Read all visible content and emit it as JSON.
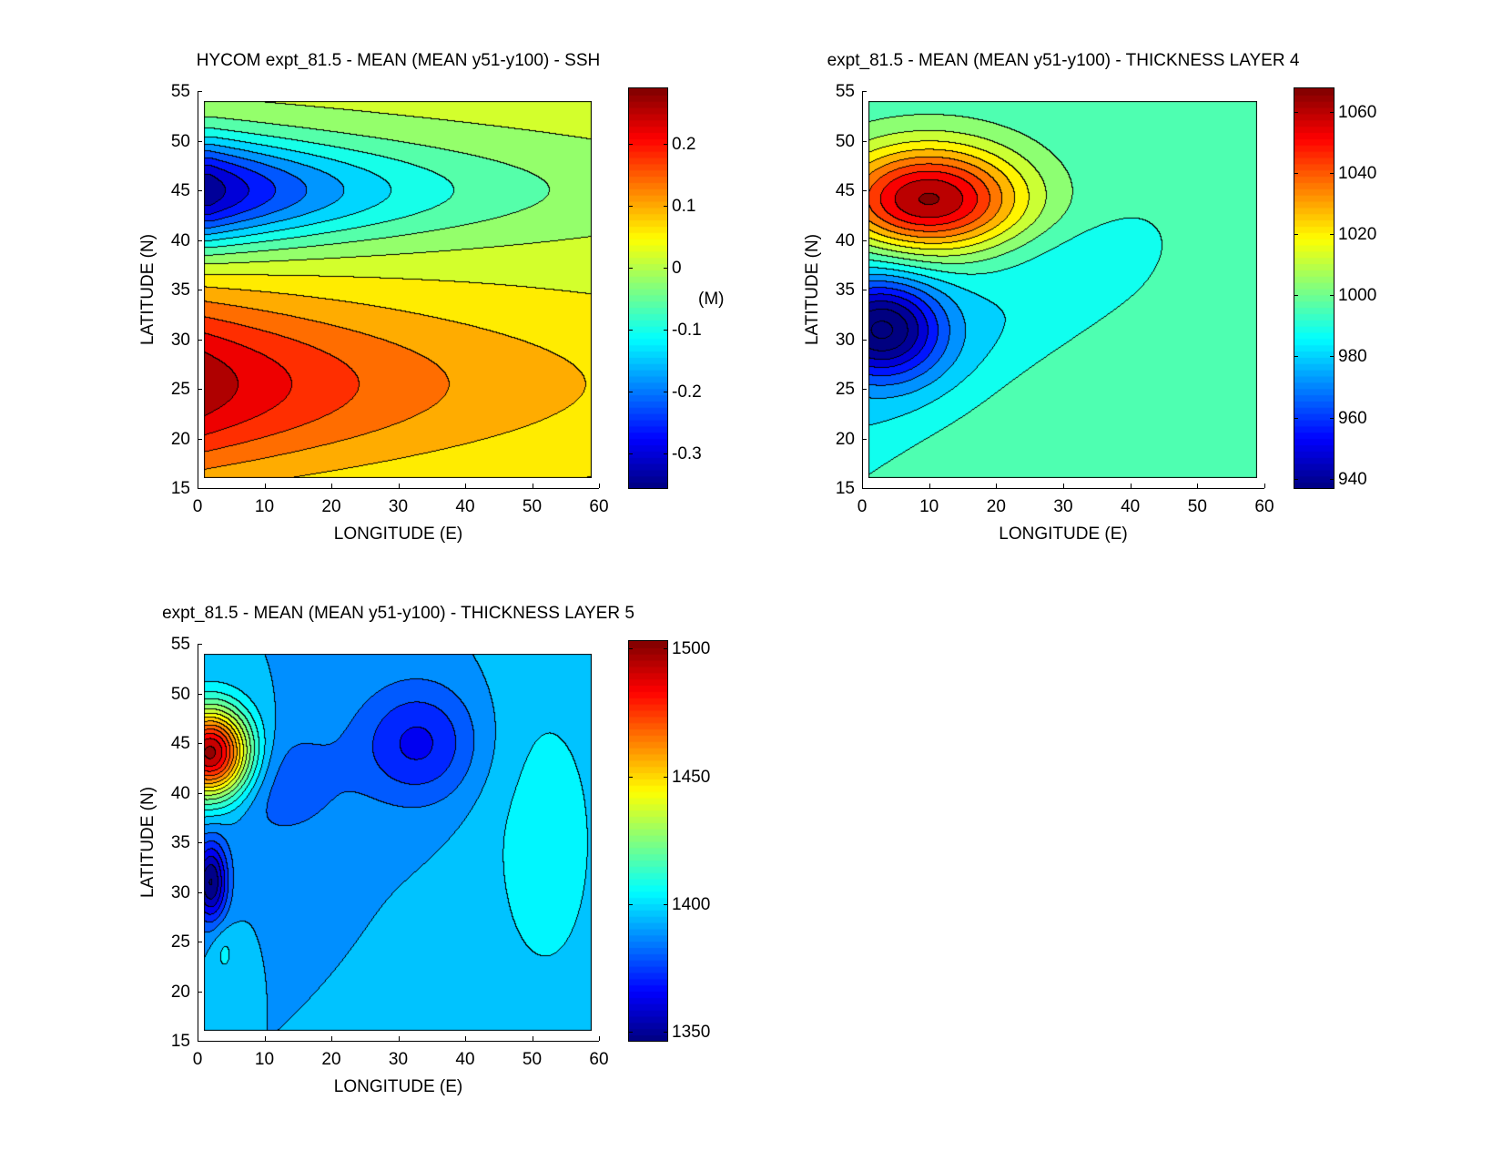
{
  "chart_data": [
    {
      "type": "heatmap",
      "subtype": "filled-contour",
      "title": "HYCOM expt_81.5 - MEAN (MEAN y51-y100) - SSH",
      "xlabel": "LONGITUDE (E)",
      "ylabel": "LATITUDE (N)",
      "xlim": [
        0,
        60
      ],
      "ylim": [
        15,
        55
      ],
      "data_extent": {
        "lon": [
          1,
          59
        ],
        "lat": [
          16,
          54
        ]
      },
      "xticks": [
        "0",
        "10",
        "20",
        "30",
        "40",
        "50",
        "60"
      ],
      "yticks": [
        "15",
        "20",
        "25",
        "30",
        "35",
        "40",
        "45",
        "50",
        "55"
      ],
      "colorbar": {
        "range": [
          -0.356,
          0.29
        ],
        "ticks": [
          "-0.3",
          "-0.2",
          "-0.1",
          "0",
          "0.1",
          "0.2"
        ],
        "tick_values": [
          -0.3,
          -0.2,
          -0.1,
          0,
          0.1,
          0.2
        ],
        "label": "(M)"
      },
      "contour_step": 0.04,
      "field": {
        "base": 0.02,
        "features": [
          {
            "kind": "exp",
            "amp": 0.25,
            "x0": 1,
            "y0": 25.5,
            "lx": 40,
            "sy": 9
          },
          {
            "kind": "exp",
            "amp": -0.37,
            "x0": 2,
            "y0": 45,
            "lx": 28,
            "sy": 5.5
          }
        ]
      }
    },
    {
      "type": "heatmap",
      "subtype": "filled-contour",
      "title": "expt_81.5 - MEAN (MEAN y51-y100) - THICKNESS LAYER 4",
      "xlabel": "LONGITUDE (E)",
      "ylabel": "LATITUDE (N)",
      "xlim": [
        0,
        60
      ],
      "ylim": [
        15,
        55
      ],
      "data_extent": {
        "lon": [
          1,
          59
        ],
        "lat": [
          16,
          54
        ]
      },
      "xticks": [
        "0",
        "10",
        "20",
        "30",
        "40",
        "50",
        "60"
      ],
      "yticks": [
        "15",
        "20",
        "25",
        "30",
        "35",
        "40",
        "45",
        "50",
        "55"
      ],
      "colorbar": {
        "range": [
          937,
          1067.6
        ],
        "ticks": [
          "940",
          "960",
          "980",
          "1000",
          "1020",
          "1040",
          "1060"
        ],
        "tick_values": [
          940,
          960,
          980,
          1000,
          1020,
          1040,
          1060
        ],
        "label": ""
      },
      "contour_step": 8,
      "field": {
        "base": 994,
        "features": [
          {
            "kind": "gauss",
            "amp": 72,
            "x0": 10,
            "y0": 44,
            "sx": 14,
            "sy": 5.5
          },
          {
            "kind": "gauss",
            "amp": -58,
            "x0": 3,
            "y0": 31,
            "sx": 9,
            "sy": 5
          },
          {
            "kind": "tongue",
            "amp": -10,
            "x0": 0,
            "y0": 18,
            "slope": 0.45,
            "top": 41,
            "xmax": 44
          }
        ]
      }
    },
    {
      "type": "heatmap",
      "subtype": "filled-contour",
      "title": "expt_81.5 - MEAN (MEAN y51-y100) - THICKNESS LAYER 5",
      "xlabel": "LONGITUDE (E)",
      "ylabel": "LATITUDE (N)",
      "xlim": [
        0,
        60
      ],
      "ylim": [
        15,
        55
      ],
      "data_extent": {
        "lon": [
          1,
          59
        ],
        "lat": [
          16,
          54
        ]
      },
      "xticks": [
        "0",
        "10",
        "20",
        "30",
        "40",
        "50",
        "60"
      ],
      "yticks": [
        "15",
        "20",
        "25",
        "30",
        "35",
        "40",
        "45",
        "50",
        "55"
      ],
      "colorbar": {
        "range": [
          1346.6,
          1503
        ],
        "ticks": [
          "1350",
          "1400",
          "1450",
          "1500"
        ],
        "tick_values": [
          1350,
          1400,
          1450,
          1500
        ],
        "label": ""
      },
      "contour_step": 8,
      "field": {
        "base": 1392,
        "features": [
          {
            "kind": "gauss",
            "amp": 110,
            "x0": 2,
            "y0": 44,
            "sx": 6,
            "sy": 4.5
          },
          {
            "kind": "gauss",
            "amp": -26,
            "x0": 33,
            "y0": 45,
            "sx": 9,
            "sy": 6
          },
          {
            "kind": "gauss",
            "amp": -14,
            "x0": 12,
            "y0": 41,
            "sx": 10,
            "sy": 6
          },
          {
            "kind": "gauss",
            "amp": -48,
            "x0": 2,
            "y0": 31,
            "sx": 2.5,
            "sy": 4
          },
          {
            "kind": "gauss",
            "amp": 12,
            "x0": 52,
            "y0": 35,
            "sx": 10,
            "sy": 18
          },
          {
            "kind": "gauss",
            "amp": 10,
            "x0": 4,
            "y0": 24,
            "sx": 2,
            "sy": 3
          }
        ]
      }
    }
  ]
}
